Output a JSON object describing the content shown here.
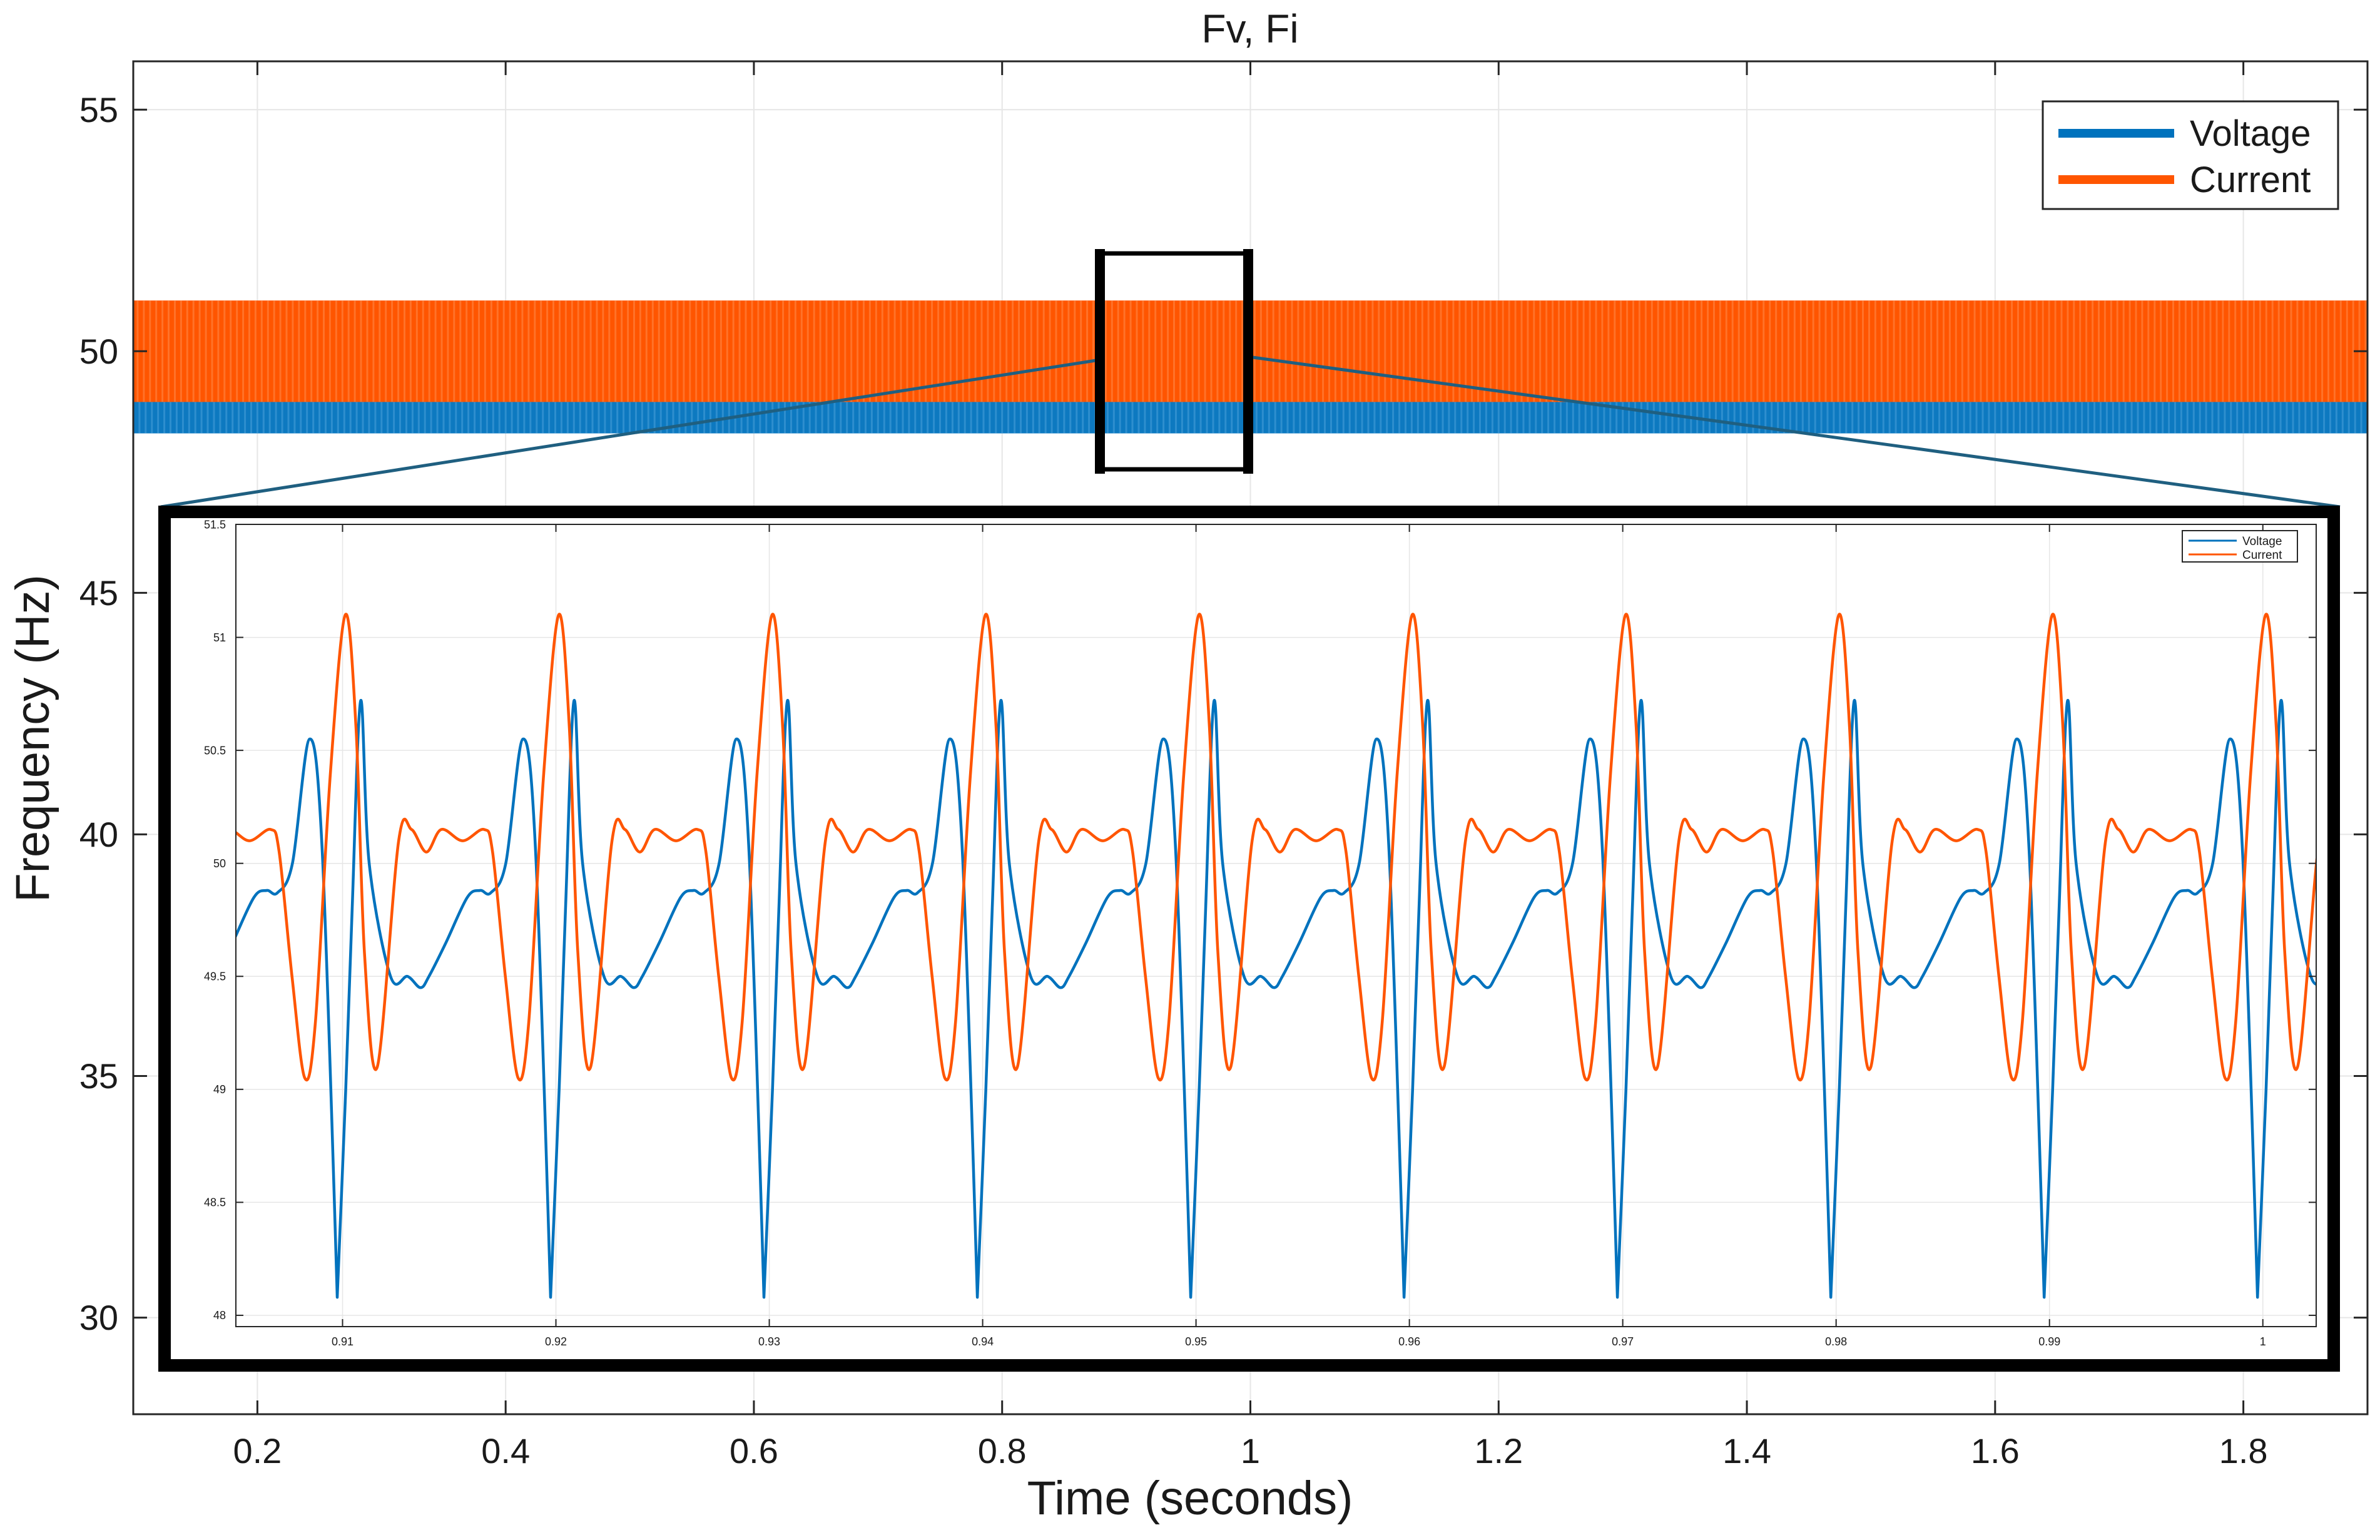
{
  "colors": {
    "voltage": "#0072BD",
    "current": "#FF5500",
    "grid": "#e6e6e6",
    "axis": "#262626",
    "inset_frame": "#000000",
    "connector": "#1f5f80"
  },
  "chart_data": [
    {
      "id": "main",
      "type": "line",
      "title": "Fv, Fi",
      "xlabel": "Time (seconds)",
      "ylabel": "Frequency (Hz)",
      "xlim": [
        0.1,
        1.9
      ],
      "ylim": [
        28,
        56
      ],
      "xticks": [
        0.2,
        0.4,
        0.6,
        0.8,
        1,
        1.2,
        1.4,
        1.6,
        1.8
      ],
      "xtick_labels": [
        "0.2",
        "0.4",
        "0.6",
        "0.8",
        "1",
        "1.2",
        "1.4",
        "1.6",
        "1.8"
      ],
      "yticks": [
        30,
        35,
        40,
        45,
        50,
        55
      ],
      "ytick_labels": [
        "30",
        "35",
        "40",
        "45",
        "50",
        "55"
      ],
      "grid": true,
      "legend": {
        "position": "top-right",
        "entries": [
          "Voltage",
          "Current"
        ]
      },
      "series": [
        {
          "name": "Voltage",
          "color": "#0072BD",
          "min": 48.3,
          "max": 50.7,
          "period_s": 0.01,
          "x_range": [
            0.1,
            1.9
          ]
        },
        {
          "name": "Current",
          "color": "#FF5500",
          "min": 48.95,
          "max": 51.05,
          "period_s": 0.01,
          "x_range": [
            0.1,
            1.9
          ]
        }
      ],
      "zoom_box": {
        "x": [
          0.905,
          1.025
        ],
        "y": [
          47.4,
          51.9
        ]
      }
    },
    {
      "id": "inset",
      "type": "line",
      "xlim": [
        0.905,
        1.0025
      ],
      "ylim": [
        47.95,
        51.5
      ],
      "xticks": [
        0.91,
        0.92,
        0.93,
        0.94,
        0.95,
        0.96,
        0.97,
        0.98,
        0.99,
        1
      ],
      "xtick_labels": [
        "0.91",
        "0.92",
        "0.93",
        "0.94",
        "0.95",
        "0.96",
        "0.97",
        "0.98",
        "0.99",
        "1"
      ],
      "yticks": [
        48,
        48.5,
        49,
        49.5,
        50,
        50.5,
        51,
        51.5
      ],
      "ytick_labels": [
        "48",
        "48.5",
        "49",
        "49.5",
        "50",
        "50.5",
        "51",
        "51.5"
      ],
      "grid": true,
      "legend": {
        "position": "top-right",
        "entries": [
          "Voltage",
          "Current"
        ]
      },
      "series": [
        {
          "name": "Voltage",
          "color": "#0072BD",
          "period_s": 0.01,
          "cycle_points_t": [
            0.0,
            0.0008,
            0.0018,
            0.0024,
            0.0029,
            0.0036,
            0.0044,
            0.005,
            0.0057,
            0.0061,
            0.0064,
            0.0068,
            0.0072,
            0.0082,
            0.009,
            0.0096,
            0.01
          ],
          "cycle_points_v": [
            49.5,
            49.65,
            49.85,
            49.88,
            49.87,
            50.0,
            50.55,
            50.05,
            48.08,
            49.0,
            49.8,
            50.72,
            50.0,
            49.5,
            49.5,
            49.45,
            49.5
          ],
          "cycle_anchor": 0.90405
        },
        {
          "name": "Current",
          "color": "#FF5500",
          "period_s": 0.01,
          "cycle_points_t": [
            0.0,
            0.001,
            0.002,
            0.0024,
            0.003,
            0.0036,
            0.0041,
            0.0048,
            0.0055,
            0.006,
            0.0064,
            0.007,
            0.008,
            0.0086,
            0.0093,
            0.01
          ],
          "cycle_points_v": [
            50.15,
            50.1,
            50.15,
            50.05,
            49.5,
            49.05,
            49.3,
            50.4,
            51.1,
            50.6,
            49.6,
            49.1,
            50.1,
            50.15,
            50.05,
            50.15
          ],
          "cycle_anchor": 0.90463
        }
      ]
    }
  ]
}
